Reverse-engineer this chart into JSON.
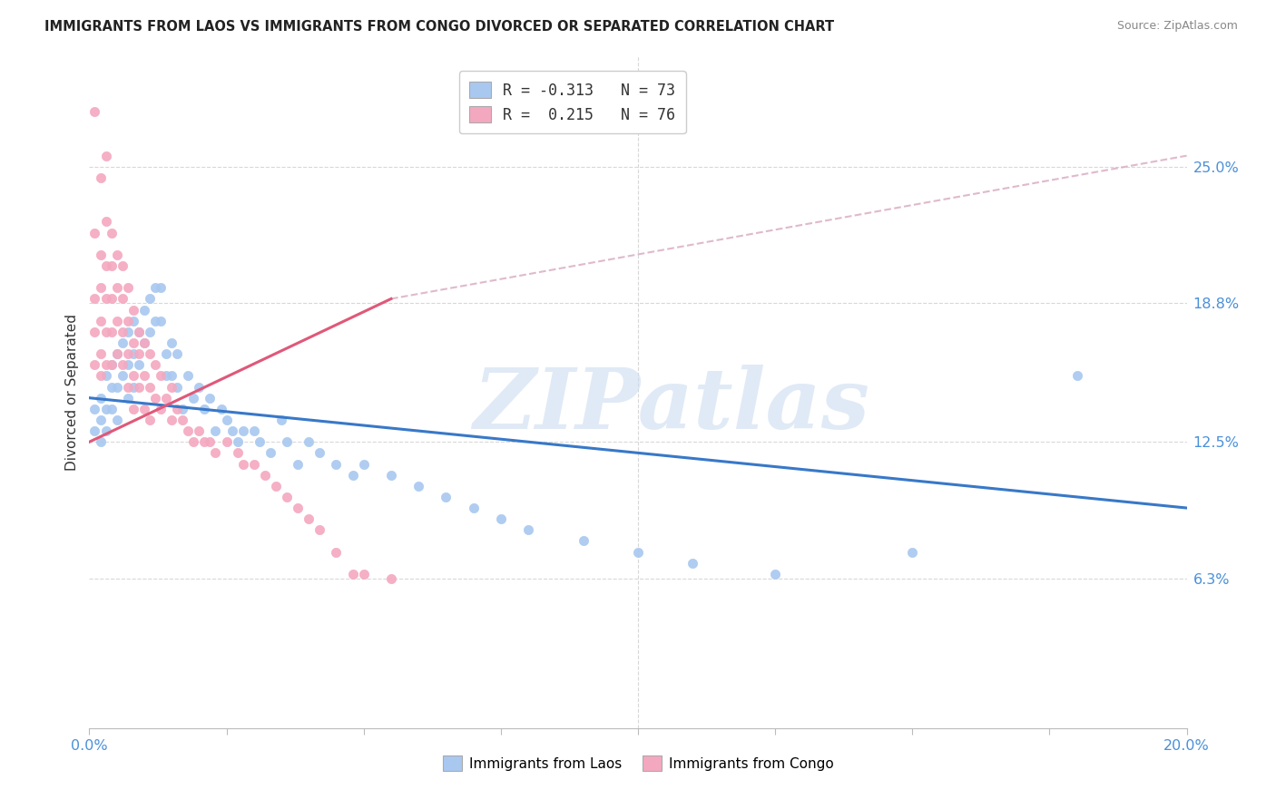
{
  "title": "IMMIGRANTS FROM LAOS VS IMMIGRANTS FROM CONGO DIVORCED OR SEPARATED CORRELATION CHART",
  "source": "Source: ZipAtlas.com",
  "ylabel": "Divorced or Separated",
  "right_yticks": [
    "25.0%",
    "18.8%",
    "12.5%",
    "6.3%"
  ],
  "right_ytick_vals": [
    0.25,
    0.188,
    0.125,
    0.063
  ],
  "legend_blue_r": "R = -0.313",
  "legend_blue_n": "N = 73",
  "legend_pink_r": "R =  0.215",
  "legend_pink_n": "N = 76",
  "watermark": "ZIPatlas",
  "blue_color": "#a8c8f0",
  "pink_color": "#f4a8c0",
  "blue_line_color": "#3878c8",
  "pink_line_color": "#e05878",
  "pink_dash_color": "#d8a8c0",
  "xlim": [
    0.0,
    0.2
  ],
  "ylim": [
    -0.005,
    0.3
  ],
  "blue_scatter_x": [
    0.001,
    0.001,
    0.002,
    0.002,
    0.002,
    0.003,
    0.003,
    0.003,
    0.004,
    0.004,
    0.004,
    0.005,
    0.005,
    0.005,
    0.006,
    0.006,
    0.007,
    0.007,
    0.007,
    0.008,
    0.008,
    0.008,
    0.009,
    0.009,
    0.01,
    0.01,
    0.011,
    0.011,
    0.012,
    0.012,
    0.013,
    0.013,
    0.014,
    0.014,
    0.015,
    0.015,
    0.016,
    0.016,
    0.017,
    0.018,
    0.019,
    0.02,
    0.021,
    0.022,
    0.023,
    0.024,
    0.025,
    0.026,
    0.027,
    0.028,
    0.03,
    0.031,
    0.033,
    0.035,
    0.036,
    0.038,
    0.04,
    0.042,
    0.045,
    0.048,
    0.05,
    0.055,
    0.06,
    0.065,
    0.07,
    0.075,
    0.08,
    0.09,
    0.1,
    0.11,
    0.125,
    0.15,
    0.18
  ],
  "blue_scatter_y": [
    0.14,
    0.13,
    0.145,
    0.135,
    0.125,
    0.155,
    0.14,
    0.13,
    0.16,
    0.15,
    0.14,
    0.165,
    0.15,
    0.135,
    0.17,
    0.155,
    0.175,
    0.16,
    0.145,
    0.18,
    0.165,
    0.15,
    0.175,
    0.16,
    0.185,
    0.17,
    0.19,
    0.175,
    0.195,
    0.18,
    0.195,
    0.18,
    0.165,
    0.155,
    0.17,
    0.155,
    0.165,
    0.15,
    0.14,
    0.155,
    0.145,
    0.15,
    0.14,
    0.145,
    0.13,
    0.14,
    0.135,
    0.13,
    0.125,
    0.13,
    0.13,
    0.125,
    0.12,
    0.135,
    0.125,
    0.115,
    0.125,
    0.12,
    0.115,
    0.11,
    0.115,
    0.11,
    0.105,
    0.1,
    0.095,
    0.09,
    0.085,
    0.08,
    0.075,
    0.07,
    0.065,
    0.075,
    0.155
  ],
  "pink_scatter_x": [
    0.001,
    0.001,
    0.001,
    0.001,
    0.001,
    0.002,
    0.002,
    0.002,
    0.002,
    0.002,
    0.002,
    0.003,
    0.003,
    0.003,
    0.003,
    0.003,
    0.003,
    0.004,
    0.004,
    0.004,
    0.004,
    0.004,
    0.005,
    0.005,
    0.005,
    0.005,
    0.006,
    0.006,
    0.006,
    0.006,
    0.007,
    0.007,
    0.007,
    0.007,
    0.008,
    0.008,
    0.008,
    0.008,
    0.009,
    0.009,
    0.009,
    0.01,
    0.01,
    0.01,
    0.011,
    0.011,
    0.011,
    0.012,
    0.012,
    0.013,
    0.013,
    0.014,
    0.015,
    0.015,
    0.016,
    0.017,
    0.018,
    0.019,
    0.02,
    0.021,
    0.022,
    0.023,
    0.025,
    0.027,
    0.028,
    0.03,
    0.032,
    0.034,
    0.036,
    0.038,
    0.04,
    0.042,
    0.045,
    0.048,
    0.05,
    0.055
  ],
  "pink_scatter_y": [
    0.275,
    0.22,
    0.19,
    0.175,
    0.16,
    0.245,
    0.21,
    0.195,
    0.18,
    0.165,
    0.155,
    0.255,
    0.225,
    0.205,
    0.19,
    0.175,
    0.16,
    0.22,
    0.205,
    0.19,
    0.175,
    0.16,
    0.21,
    0.195,
    0.18,
    0.165,
    0.205,
    0.19,
    0.175,
    0.16,
    0.195,
    0.18,
    0.165,
    0.15,
    0.185,
    0.17,
    0.155,
    0.14,
    0.175,
    0.165,
    0.15,
    0.17,
    0.155,
    0.14,
    0.165,
    0.15,
    0.135,
    0.16,
    0.145,
    0.155,
    0.14,
    0.145,
    0.15,
    0.135,
    0.14,
    0.135,
    0.13,
    0.125,
    0.13,
    0.125,
    0.125,
    0.12,
    0.125,
    0.12,
    0.115,
    0.115,
    0.11,
    0.105,
    0.1,
    0.095,
    0.09,
    0.085,
    0.075,
    0.065,
    0.065,
    0.063
  ],
  "blue_trendline": [
    0.0,
    0.2,
    0.145,
    0.095
  ],
  "pink_solid_trendline": [
    0.0,
    0.055,
    0.125,
    0.19
  ],
  "pink_dash_trendline": [
    0.055,
    0.2,
    0.19,
    0.255
  ]
}
